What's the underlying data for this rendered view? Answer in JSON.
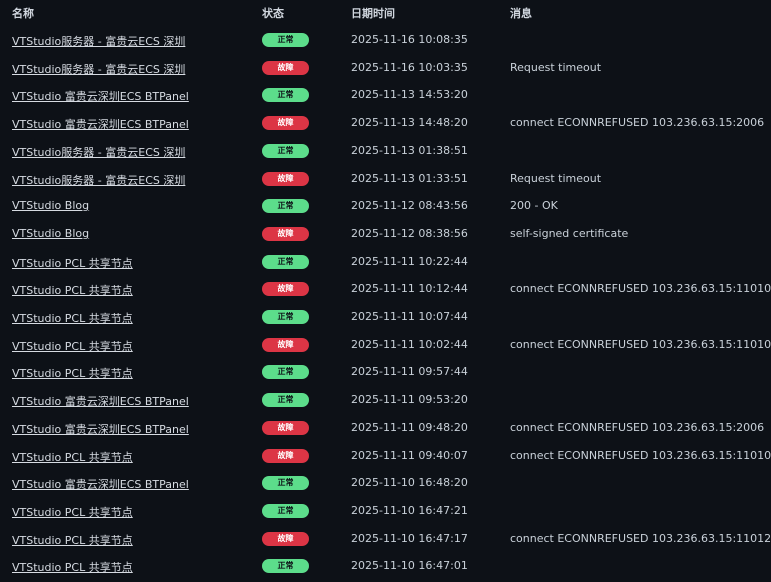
{
  "header": {
    "name": "名称",
    "status": "状态",
    "date": "日期时间",
    "message": "消息"
  },
  "colors": {
    "up": "#5cdd8b",
    "down": "#dc3545",
    "background": "#0d1117"
  },
  "rows": [
    {
      "name": "VTStudio服务器 - 富贵云ECS 深圳",
      "status": "正常",
      "state": "up",
      "date": "2025-11-16 10:08:35",
      "message": ""
    },
    {
      "name": "VTStudio服务器 - 富贵云ECS 深圳",
      "status": "故障",
      "state": "down",
      "date": "2025-11-16 10:03:35",
      "message": "Request timeout"
    },
    {
      "name": "VTStudio 富贵云深圳ECS BTPanel",
      "status": "正常",
      "state": "up",
      "date": "2025-11-13 14:53:20",
      "message": ""
    },
    {
      "name": "VTStudio 富贵云深圳ECS BTPanel",
      "status": "故障",
      "state": "down",
      "date": "2025-11-13 14:48:20",
      "message": "connect ECONNREFUSED 103.236.63.15:2006"
    },
    {
      "name": "VTStudio服务器 - 富贵云ECS 深圳",
      "status": "正常",
      "state": "up",
      "date": "2025-11-13 01:38:51",
      "message": ""
    },
    {
      "name": "VTStudio服务器 - 富贵云ECS 深圳",
      "status": "故障",
      "state": "down",
      "date": "2025-11-13 01:33:51",
      "message": "Request timeout"
    },
    {
      "name": "VTStudio Blog",
      "status": "正常",
      "state": "up",
      "date": "2025-11-12 08:43:56",
      "message": "200 - OK"
    },
    {
      "name": "VTStudio Blog",
      "status": "故障",
      "state": "down",
      "date": "2025-11-12 08:38:56",
      "message": "self-signed certificate"
    },
    {
      "name": "VTStudio PCL 共享节点",
      "status": "正常",
      "state": "up",
      "date": "2025-11-11 10:22:44",
      "message": ""
    },
    {
      "name": "VTStudio PCL 共享节点",
      "status": "故障",
      "state": "down",
      "date": "2025-11-11 10:12:44",
      "message": "connect ECONNREFUSED 103.236.63.15:11010"
    },
    {
      "name": "VTStudio PCL 共享节点",
      "status": "正常",
      "state": "up",
      "date": "2025-11-11 10:07:44",
      "message": ""
    },
    {
      "name": "VTStudio PCL 共享节点",
      "status": "故障",
      "state": "down",
      "date": "2025-11-11 10:02:44",
      "message": "connect ECONNREFUSED 103.236.63.15:11010"
    },
    {
      "name": "VTStudio PCL 共享节点",
      "status": "正常",
      "state": "up",
      "date": "2025-11-11 09:57:44",
      "message": ""
    },
    {
      "name": "VTStudio 富贵云深圳ECS BTPanel",
      "status": "正常",
      "state": "up",
      "date": "2025-11-11 09:53:20",
      "message": ""
    },
    {
      "name": "VTStudio 富贵云深圳ECS BTPanel",
      "status": "故障",
      "state": "down",
      "date": "2025-11-11 09:48:20",
      "message": "connect ECONNREFUSED 103.236.63.15:2006"
    },
    {
      "name": "VTStudio PCL 共享节点",
      "status": "故障",
      "state": "down",
      "date": "2025-11-11 09:40:07",
      "message": "connect ECONNREFUSED 103.236.63.15:11010"
    },
    {
      "name": "VTStudio 富贵云深圳ECS BTPanel",
      "status": "正常",
      "state": "up",
      "date": "2025-11-10 16:48:20",
      "message": ""
    },
    {
      "name": "VTStudio PCL 共享节点",
      "status": "正常",
      "state": "up",
      "date": "2025-11-10 16:47:21",
      "message": ""
    },
    {
      "name": "VTStudio PCL 共享节点",
      "status": "故障",
      "state": "down",
      "date": "2025-11-10 16:47:17",
      "message": "connect ECONNREFUSED 103.236.63.15:11012"
    },
    {
      "name": "VTStudio PCL 共享节点",
      "status": "正常",
      "state": "up",
      "date": "2025-11-10 16:47:01",
      "message": ""
    }
  ]
}
